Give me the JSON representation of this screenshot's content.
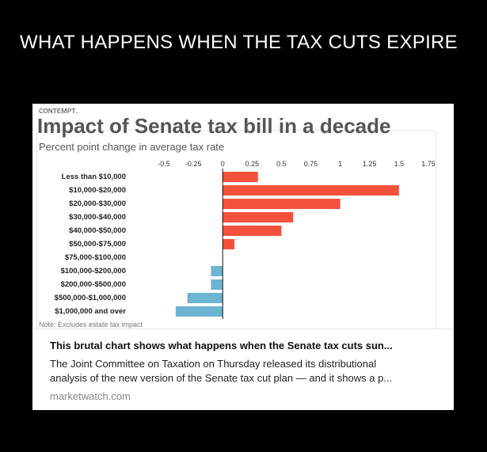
{
  "headline": "WHAT HAPPENS WHEN THE TAX CUTS EXPIRE",
  "card": {
    "cutoff_text": "ᴄᴏɴᴛᴇᴍᴘᴛ.",
    "link": {
      "title": "This brutal chart shows what happens when the Senate tax cuts sun...",
      "description_line1": "The Joint Committee on Taxation on Thursday released its distributional",
      "description_line2": "analysis of the new version of the Senate tax cut plan — and it shows a p...",
      "source": "marketwatch.com"
    }
  },
  "chart_data": {
    "type": "bar",
    "orientation": "horizontal",
    "title": "Impact of Senate tax bill in a decade",
    "subtitle": "Percent point change in average tax rate",
    "note": "Note: Excludes estate tax impact",
    "xlim": [
      -0.5,
      1.75
    ],
    "x_ticks": [
      "-0.5",
      "-0.25",
      "0",
      "0.25",
      "0.5",
      "0.75",
      "1",
      "1.25",
      "1.5",
      "1.75"
    ],
    "x_tick_values": [
      -0.5,
      -0.25,
      0,
      0.25,
      0.5,
      0.75,
      1,
      1.25,
      1.5,
      1.75
    ],
    "categories": [
      "Less than $10,000",
      "$10,000-$20,000",
      "$20,000-$30,000",
      "$30,000-$40,000",
      "$40,000-$50,000",
      "$50,000-$75,000",
      "$75,000-$100,000",
      "$100,000-$200,000",
      "$200,000-$500,000",
      "$500,000-$1,000,000",
      "$1,000,000 and over"
    ],
    "values": [
      0.3,
      1.5,
      1.0,
      0.6,
      0.5,
      0.1,
      0.0,
      -0.1,
      -0.1,
      -0.3,
      -0.4
    ],
    "colors": {
      "positive": "#f4513c",
      "negative": "#6cb4d1"
    },
    "grid": false
  }
}
